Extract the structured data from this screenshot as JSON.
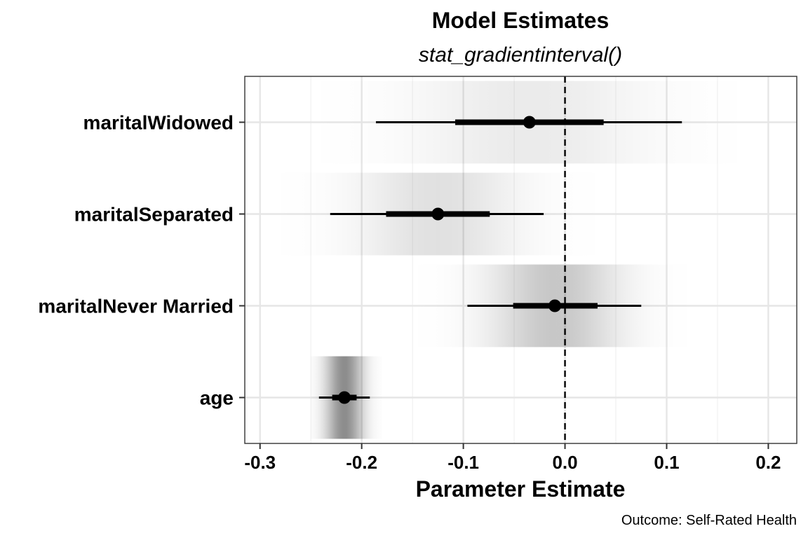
{
  "chart_data": {
    "type": "interval",
    "title": "Model Estimates",
    "subtitle": "stat_gradientinterval()",
    "xlabel": "Parameter Estimate",
    "ylabel": "",
    "caption": "Outcome: Self-Rated Health",
    "xlim": [
      -0.315,
      0.228
    ],
    "x_ticks": [
      -0.3,
      -0.2,
      -0.1,
      0.0,
      0.1,
      0.2
    ],
    "x_tick_labels": [
      "-0.3",
      "-0.2",
      "-0.1",
      "0.0",
      "0.1",
      "0.2"
    ],
    "reference_line": 0.0,
    "grid": true,
    "terms": [
      {
        "label": "maritalWidowed",
        "estimate": -0.035,
        "inner": [
          -0.108,
          0.038
        ],
        "outer": [
          -0.186,
          0.115
        ],
        "gradient": [
          -0.24,
          0.17
        ],
        "density_peak": 0.08
      },
      {
        "label": "maritalSeparated",
        "estimate": -0.125,
        "inner": [
          -0.176,
          -0.074
        ],
        "outer": [
          -0.231,
          -0.021
        ],
        "gradient": [
          -0.28,
          0.03
        ],
        "density_peak": 0.12
      },
      {
        "label": "maritalNever Married",
        "estimate": -0.01,
        "inner": [
          -0.051,
          0.032
        ],
        "outer": [
          -0.096,
          0.075
        ],
        "gradient": [
          -0.15,
          0.12
        ],
        "density_peak": 0.22
      },
      {
        "label": "age",
        "estimate": -0.217,
        "inner": [
          -0.229,
          -0.205
        ],
        "outer": [
          -0.242,
          -0.192
        ],
        "gradient": [
          -0.25,
          -0.18
        ],
        "density_peak": 0.45
      }
    ]
  }
}
